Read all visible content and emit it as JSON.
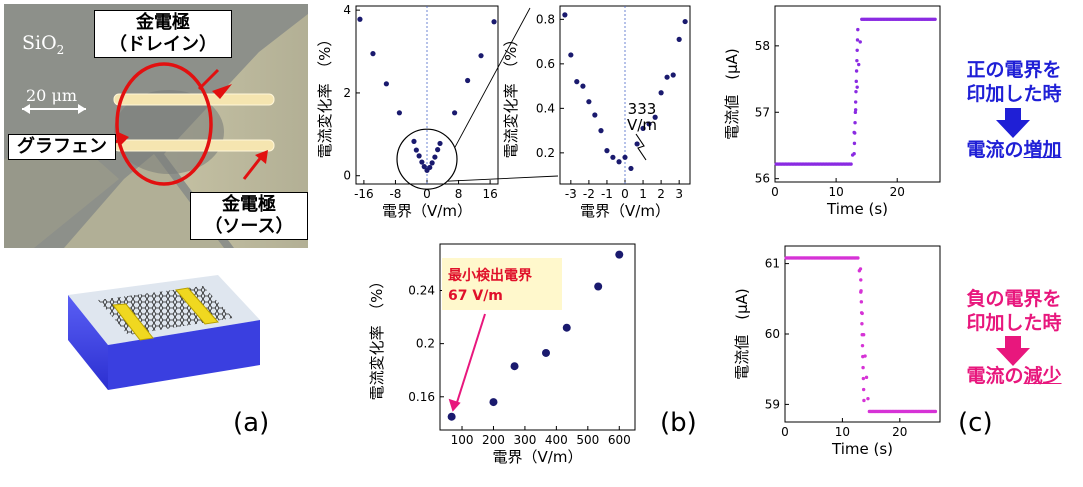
{
  "panel_a": {
    "label": "(a)",
    "sio2": "SiO",
    "sio2_sub": "2",
    "scale_bar": "20 μm",
    "electrode_drain_line1": "金電極",
    "electrode_drain_line2": "（ドレイン）",
    "graphene_label": "グラフェン",
    "electrode_source_line1": "金電極",
    "electrode_source_line2": "（ソース）"
  },
  "panel_b": {
    "label": "(b)"
  },
  "panel_c": {
    "label": "(c)",
    "positive_line1": "正の電界を",
    "positive_line2": "印加した時",
    "positive_result_prefix": "電流の",
    "positive_result_word": "増加",
    "negative_line1": "負の電界を",
    "negative_line2": "印加した時",
    "negative_result_prefix": "電流の",
    "negative_result_word": "減少",
    "colors": {
      "positive": "#1f1fd6",
      "negative": "#e8177d"
    }
  },
  "chart_data": [
    {
      "id": "b-full",
      "type": "scatter",
      "xlabel": "電界（V/m）",
      "ylabel": "電流変化率　（%）",
      "xlim": [
        -18,
        18
      ],
      "ylim": [
        -0.2,
        4.1
      ],
      "xticks": [
        -16,
        -8,
        0,
        8,
        16
      ],
      "yticks": [
        0,
        2,
        4
      ],
      "x": [
        -17.0,
        -13.7,
        -10.3,
        -7.0,
        -3.3,
        -2.7,
        -2.0,
        -1.3,
        -0.7,
        0,
        0.7,
        1.3,
        2.0,
        2.7,
        3.3,
        7.0,
        10.3,
        13.7,
        17.0
      ],
      "y": [
        3.78,
        2.95,
        2.22,
        1.52,
        0.83,
        0.62,
        0.48,
        0.33,
        0.22,
        0.13,
        0.2,
        0.31,
        0.45,
        0.63,
        0.78,
        1.52,
        2.3,
        2.9,
        3.72
      ],
      "color": "#1a1a6e"
    },
    {
      "id": "b-zoom",
      "type": "scatter",
      "xlabel": "電界（V/m）",
      "ylabel": "電流変化率　（%）",
      "annotation_value": "333",
      "annotation_unit": "V/m",
      "xlim": [
        -3.6,
        3.6
      ],
      "ylim": [
        0.06,
        0.86
      ],
      "xticks": [
        -3,
        -2,
        -1,
        0,
        1,
        2,
        3
      ],
      "yticks": [
        0.2,
        0.4,
        0.6,
        0.8
      ],
      "x": [
        -3.33,
        -3.0,
        -2.67,
        -2.33,
        -2.0,
        -1.67,
        -1.33,
        -1.0,
        -0.67,
        -0.33,
        0,
        0.33,
        0.67,
        1.0,
        1.33,
        1.67,
        2.0,
        2.33,
        2.67,
        3.0,
        3.33
      ],
      "y": [
        0.82,
        0.64,
        0.52,
        0.5,
        0.43,
        0.37,
        0.3,
        0.21,
        0.18,
        0.16,
        0.18,
        0.13,
        0.24,
        0.31,
        0.33,
        0.36,
        0.47,
        0.54,
        0.55,
        0.71,
        0.79
      ],
      "color": "#1a1a6e"
    },
    {
      "id": "b-low",
      "type": "scatter",
      "xlabel": "電界（V/m）",
      "ylabel": "電流変化率　（%）",
      "annotation_line1": "最小検出電界",
      "annotation_line2": "67 V/m",
      "xlim": [
        30,
        650
      ],
      "ylim": [
        0.135,
        0.275
      ],
      "xticks": [
        100,
        200,
        300,
        400,
        500,
        600
      ],
      "yticks": [
        0.16,
        0.2,
        0.24
      ],
      "x": [
        67,
        200,
        267,
        367,
        433,
        533,
        600
      ],
      "y": [
        0.145,
        0.156,
        0.183,
        0.193,
        0.212,
        0.243,
        0.267
      ],
      "color": "#1a1a6e"
    },
    {
      "id": "c-top",
      "type": "scatter",
      "xlabel": "Time (s)",
      "ylabel": "電流値　(μA)",
      "xlim": [
        0,
        27
      ],
      "ylim": [
        55.95,
        58.6
      ],
      "xticks": [
        0,
        10,
        20
      ],
      "yticks": [
        56,
        57,
        58
      ],
      "baseline_before": 56.22,
      "baseline_after": 58.4,
      "step_time": [
        12.6,
        14.2
      ],
      "color": "#8a2be2"
    },
    {
      "id": "c-bottom",
      "type": "scatter",
      "xlabel": "Time (s)",
      "ylabel": "電流値　(μA)",
      "xlim": [
        0,
        27
      ],
      "ylim": [
        58.75,
        61.25
      ],
      "xticks": [
        0,
        10,
        20
      ],
      "yticks": [
        59,
        60,
        61
      ],
      "baseline_before": 61.08,
      "baseline_after": 58.9,
      "step_time": [
        12.8,
        14.6
      ],
      "color": "#d633d6"
    }
  ]
}
